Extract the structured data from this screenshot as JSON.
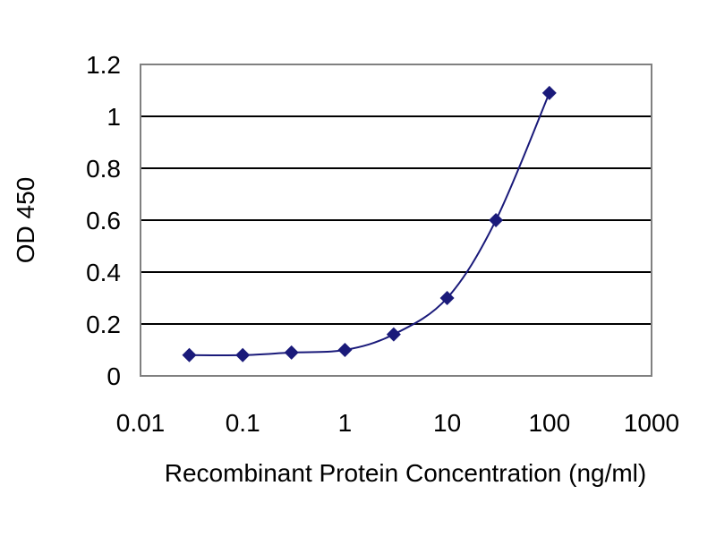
{
  "chart_data": {
    "type": "line",
    "title": "",
    "xlabel": "Recombinant Protein Concentration (ng/ml)",
    "ylabel": "OD 450",
    "x_scale": "log",
    "xlim": [
      0.01,
      1000
    ],
    "ylim": [
      0,
      1.2
    ],
    "x_ticks": [
      {
        "value": 0.01,
        "label": "0.01"
      },
      {
        "value": 0.1,
        "label": "0.1"
      },
      {
        "value": 1,
        "label": "1"
      },
      {
        "value": 10,
        "label": "10"
      },
      {
        "value": 100,
        "label": "100"
      },
      {
        "value": 1000,
        "label": "1000"
      }
    ],
    "y_ticks": [
      {
        "value": 0,
        "label": "0"
      },
      {
        "value": 0.2,
        "label": "0.2"
      },
      {
        "value": 0.4,
        "label": "0.4"
      },
      {
        "value": 0.6,
        "label": "0.6"
      },
      {
        "value": 0.8,
        "label": "0.8"
      },
      {
        "value": 1,
        "label": "1"
      },
      {
        "value": 1.2,
        "label": "1.2"
      }
    ],
    "grid": {
      "horizontal": true,
      "vertical": false
    },
    "series": [
      {
        "color": "#1a1a7a",
        "marker": "diamond",
        "points": [
          {
            "x": 0.03,
            "y": 0.08
          },
          {
            "x": 0.1,
            "y": 0.08
          },
          {
            "x": 0.3,
            "y": 0.09
          },
          {
            "x": 1,
            "y": 0.1
          },
          {
            "x": 3,
            "y": 0.16
          },
          {
            "x": 10,
            "y": 0.3
          },
          {
            "x": 30,
            "y": 0.6
          },
          {
            "x": 100,
            "y": 1.09
          }
        ]
      }
    ]
  }
}
